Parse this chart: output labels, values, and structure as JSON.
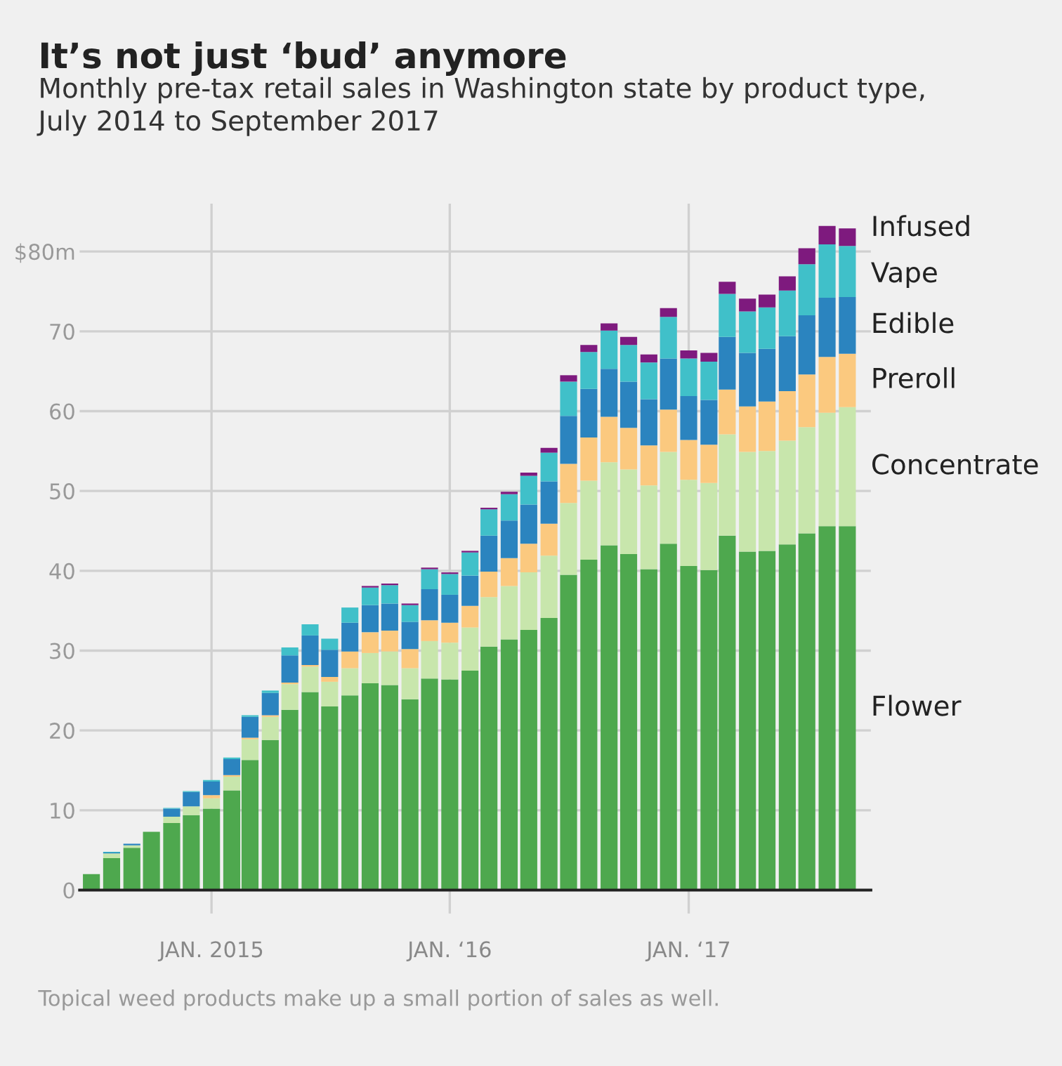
{
  "chart_data": {
    "type": "bar",
    "stacked": true,
    "title": "It’s not just ‘bud’ anymore",
    "subtitle": "Monthly pre-tax retail sales in Washington state by product type,\nJuly 2014 to September 2017",
    "annotations": [
      "Topical weed products make up a small portion of sales as well."
    ],
    "x": [
      "2014-07",
      "2014-08",
      "2014-09",
      "2014-10",
      "2014-11",
      "2014-12",
      "2015-01",
      "2015-02",
      "2015-03",
      "2015-04",
      "2015-05",
      "2015-06",
      "2015-07",
      "2015-08",
      "2015-09",
      "2015-10",
      "2015-11",
      "2015-12",
      "2016-01",
      "2016-02",
      "2016-03",
      "2016-04",
      "2016-05",
      "2016-06",
      "2016-07",
      "2016-08",
      "2016-09",
      "2016-10",
      "2016-11",
      "2016-12",
      "2017-01",
      "2017-02",
      "2017-03",
      "2017-04",
      "2017-05",
      "2017-06",
      "2017-07",
      "2017-08",
      "2017-09"
    ],
    "series": [
      {
        "name": "Flower",
        "color": "#4ea84e",
        "values": [
          2.0,
          4.0,
          5.3,
          7.3,
          8.4,
          9.4,
          10.2,
          12.5,
          16.3,
          18.8,
          22.6,
          24.8,
          23.0,
          24.4,
          25.9,
          25.7,
          23.9,
          26.5,
          26.4,
          27.5,
          30.5,
          31.4,
          32.6,
          34.1,
          39.5,
          41.4,
          43.2,
          42.1,
          40.2,
          43.4,
          40.6,
          40.1,
          44.4,
          42.4,
          42.5,
          43.3,
          44.7,
          45.6,
          45.6
        ]
      },
      {
        "name": "Concentrate",
        "color": "#c8e6ac",
        "values": [
          0,
          0.6,
          0.3,
          0,
          0.8,
          1.1,
          1.3,
          1.7,
          2.6,
          2.9,
          3.2,
          3.2,
          3.1,
          3.4,
          3.8,
          4.2,
          3.9,
          4.7,
          4.6,
          5.4,
          6.2,
          6.7,
          7.2,
          7.8,
          9.0,
          9.9,
          10.4,
          10.6,
          10.5,
          11.5,
          10.8,
          10.9,
          12.7,
          12.5,
          12.5,
          13.0,
          13.3,
          14.2,
          14.9
        ]
      },
      {
        "name": "Preroll",
        "color": "#fbc97f",
        "values": [
          0,
          0,
          0,
          0,
          0,
          0,
          0.4,
          0.2,
          0.2,
          0.2,
          0.2,
          0.2,
          0.6,
          2.1,
          2.6,
          2.6,
          2.4,
          2.6,
          2.5,
          2.7,
          3.2,
          3.5,
          3.6,
          4.0,
          4.9,
          5.4,
          5.7,
          5.2,
          5.0,
          5.3,
          5.0,
          4.8,
          5.6,
          5.7,
          6.2,
          6.2,
          6.6,
          7.0,
          6.7
        ]
      },
      {
        "name": "Edible",
        "color": "#2b84bf",
        "values": [
          0,
          0.1,
          0.2,
          0,
          1.0,
          1.8,
          1.7,
          2.0,
          2.6,
          2.8,
          3.4,
          3.7,
          3.4,
          3.6,
          3.4,
          3.4,
          3.4,
          3.9,
          3.5,
          3.8,
          4.5,
          4.7,
          4.9,
          5.3,
          6.0,
          6.1,
          6.0,
          5.8,
          5.8,
          6.4,
          5.5,
          5.6,
          6.6,
          6.7,
          6.6,
          6.9,
          7.4,
          7.4,
          7.1
        ]
      },
      {
        "name": "Vape",
        "color": "#40c0c9",
        "values": [
          0,
          0.1,
          0,
          0,
          0.1,
          0.1,
          0.2,
          0.2,
          0.2,
          0.3,
          1.0,
          1.4,
          1.4,
          1.9,
          2.2,
          2.3,
          2.1,
          2.5,
          2.6,
          2.9,
          3.3,
          3.3,
          3.6,
          3.6,
          4.3,
          4.6,
          4.8,
          4.6,
          4.6,
          5.2,
          4.7,
          4.8,
          5.4,
          5.2,
          5.2,
          5.7,
          6.4,
          6.7,
          6.4
        ]
      },
      {
        "name": "Infused",
        "color": "#7e1a7e",
        "values": [
          0,
          0,
          0,
          0,
          0,
          0,
          0,
          0,
          0,
          0,
          0,
          0,
          0,
          0,
          0.2,
          0.2,
          0.2,
          0.2,
          0.2,
          0.2,
          0.2,
          0.3,
          0.4,
          0.6,
          0.8,
          0.9,
          0.9,
          1.0,
          1.0,
          1.1,
          1.0,
          1.1,
          1.5,
          1.6,
          1.6,
          1.8,
          2.0,
          2.3,
          2.2
        ]
      }
    ],
    "xlim": [
      "2014-06-13",
      "2017-10-07"
    ],
    "xticks": [
      {
        "value": "2015-01",
        "label": "JAN. 2015"
      },
      {
        "value": "2016-01",
        "label": "JAN. ‘16"
      },
      {
        "value": "2017-01",
        "label": "JAN. ‘17"
      }
    ],
    "ylim": [
      0,
      86
    ],
    "yticks": [
      0,
      10,
      20,
      30,
      40,
      50,
      60,
      70,
      {
        "value": 80,
        "label": "$80m"
      }
    ],
    "grid": true,
    "legend": false
  }
}
